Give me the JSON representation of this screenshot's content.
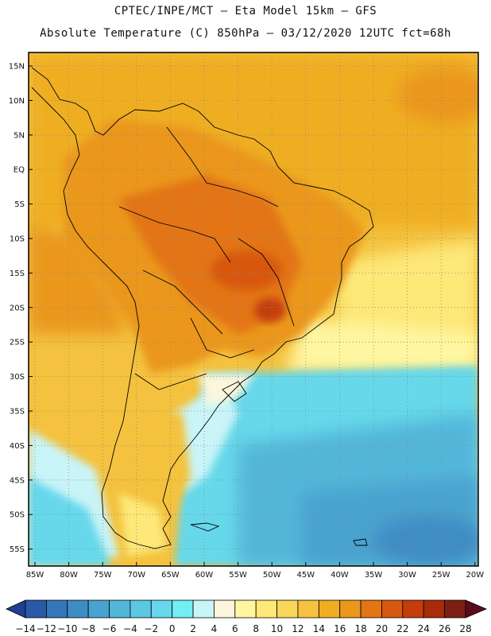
{
  "title": {
    "line1": "CPTEC/INPE/MCT –  Eta Model 15km – GFS",
    "line2": "Absolute Temperature (C) 850hPa – 03/12/2020 12UTC fct=68h"
  },
  "axes": {
    "lat_labels": [
      "15N",
      "10N",
      "5N",
      "EQ",
      "5S",
      "10S",
      "15S",
      "20S",
      "25S",
      "30S",
      "35S",
      "40S",
      "45S",
      "50S",
      "55S"
    ],
    "lon_labels": [
      "85W",
      "80W",
      "75W",
      "70W",
      "65W",
      "60W",
      "55W",
      "50W",
      "45W",
      "40W",
      "35W",
      "30W",
      "25W",
      "20W"
    ]
  },
  "colorbar": {
    "labels": [
      "-14",
      "-12",
      "-10",
      "-8",
      "-6",
      "-4",
      "-2",
      "0",
      "2",
      "4",
      "6",
      "8",
      "10",
      "12",
      "14",
      "16",
      "18",
      "20",
      "22",
      "24",
      "26",
      "28"
    ],
    "colors": [
      "#1f3f8f",
      "#2a5aa6",
      "#3576b8",
      "#3f8cc4",
      "#4aa3cf",
      "#52b6d9",
      "#5cc7e2",
      "#66d8ea",
      "#72eef4",
      "#c9f4f8",
      "#fdf6dc",
      "#fef6a0",
      "#fde878",
      "#f9d65a",
      "#f4c23e",
      "#efae22",
      "#ea971c",
      "#e37514",
      "#d7580f",
      "#c53d0c",
      "#a82b0a",
      "#7e1f14",
      "#5a0c1c"
    ]
  },
  "palette": {
    "water_cool": "#5cc7e2",
    "water_cold": "#3f8cc4",
    "land_warm": "#ea971c",
    "land_hot": "#d7580f",
    "ocean_warm": "#efae22",
    "coast": "#000000"
  }
}
